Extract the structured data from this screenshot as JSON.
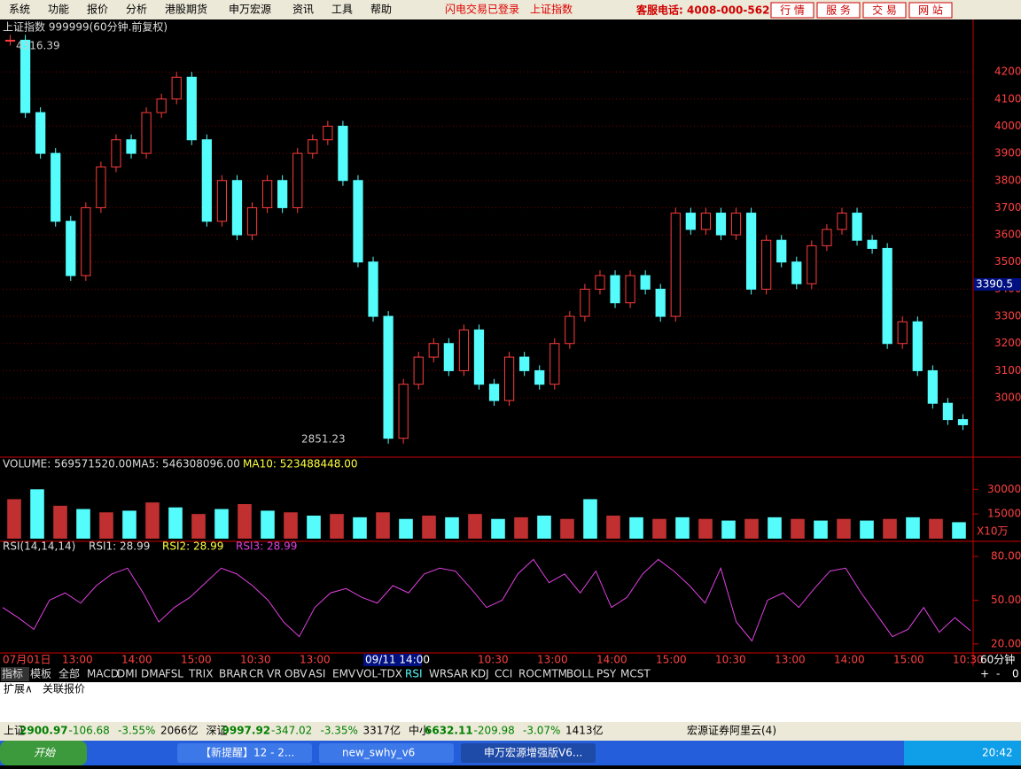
{
  "menu": [
    "系统",
    "功能",
    "报价",
    "分析",
    "港股期货",
    "申万宏源",
    "资讯",
    "工具",
    "帮助"
  ],
  "status_top": [
    "闪电交易已登录",
    "上证指数"
  ],
  "hotline": "客服电话: 4008-000-562",
  "top_buttons": [
    "行 情",
    "服 务",
    "交 易",
    "网 站"
  ],
  "price_chart": {
    "type": "candlestick",
    "title": "上证指数 999999(60分钟.前复权)",
    "values": [
      4316.39,
      4050,
      3900,
      3650,
      3450,
      3700,
      3850,
      3950,
      3900,
      4050,
      4100,
      4180,
      3950,
      3650,
      3800,
      3600,
      3700,
      3800,
      3700,
      3900,
      3950,
      4000,
      3800,
      3500,
      3300,
      2851.23,
      3050,
      3150,
      3200,
      3100,
      3250,
      3050,
      2990,
      3150,
      3100,
      3050,
      3200,
      3300,
      3400,
      3450,
      3350,
      3450,
      3400,
      3300,
      3680,
      3620,
      3680,
      3600,
      3680,
      3400,
      3580,
      3500,
      3420,
      3560,
      3620,
      3680,
      3580,
      3550,
      3200,
      3280,
      3100,
      2980,
      2920,
      2900.97
    ],
    "up_color": "#ff3c3c",
    "down_color": "#54fcfc",
    "ylim": [
      2785,
      4334
    ],
    "yticks": [
      3000,
      3100,
      3200,
      3300,
      3400,
      3500,
      3600,
      3700,
      3800,
      3900,
      4000,
      4100,
      4200
    ],
    "annotations": {
      "high": "4316.39",
      "low": "2851.23",
      "current": "3390.5"
    }
  },
  "volume_chart": {
    "type": "bar",
    "header": [
      "VOLUME: 569571520.00",
      "MA5: 546308096.00",
      "MA10: 523488448.00"
    ],
    "values": [
      24000,
      30000,
      20000,
      18000,
      16000,
      17000,
      22000,
      19000,
      15000,
      18000,
      21000,
      17000,
      16000,
      14000,
      15000,
      13000,
      16000,
      12000,
      14000,
      13000,
      15000,
      12000,
      13000,
      14000,
      12000,
      24000,
      14000,
      13000,
      12000,
      13000,
      12000,
      11000,
      12000,
      13000,
      12000,
      11000,
      12000,
      11000,
      12000,
      13000,
      12000,
      10000
    ],
    "ylim": [
      0,
      42000
    ],
    "yticks": [
      15000,
      30000
    ],
    "unit": "X10万"
  },
  "rsi_chart": {
    "type": "line",
    "header": [
      "RSI(14,14,14)",
      "RSI1: 28.99",
      "RSI2: 28.99",
      "RSI3: 28.99"
    ],
    "color": "#e040e0",
    "values": [
      45,
      38,
      30,
      50,
      55,
      48,
      60,
      68,
      72,
      55,
      35,
      45,
      52,
      62,
      72,
      68,
      60,
      50,
      35,
      25,
      45,
      55,
      58,
      52,
      48,
      60,
      55,
      68,
      72,
      70,
      58,
      45,
      50,
      68,
      78,
      62,
      68,
      55,
      70,
      45,
      52,
      68,
      78,
      70,
      60,
      48,
      72,
      35,
      22,
      50,
      55,
      45,
      58,
      70,
      72,
      55,
      40,
      25,
      30,
      45,
      28,
      38,
      28.99
    ],
    "ylim": [
      15,
      88
    ],
    "yticks": [
      {
        "value": 20,
        "label": "20.00"
      },
      {
        "value": 50,
        "label": "50.00"
      },
      {
        "value": 80,
        "label": "80.00"
      }
    ]
  },
  "time_labels": [
    "07月01日",
    "13:00",
    "14:00",
    "15:00",
    "10:30",
    "13:00",
    "10:30",
    "13:00",
    "14:00",
    "15:00",
    "10:30",
    "13:00",
    "14:00",
    "15:00",
    "10:30"
  ],
  "cursor_label": "09/11 14:00",
  "period": "60分钟",
  "zoom_buttons": [
    "+",
    "-",
    "0"
  ],
  "tabs": [
    "指标",
    "模板",
    "全部",
    "MACD",
    "DMI",
    "DMA",
    "FSL",
    "TRIX",
    "BRAR",
    "CR",
    "VR",
    "OBV",
    "ASI",
    "EMV",
    "VOL-TDX",
    "RSI",
    "WR",
    "SAR",
    "KDJ",
    "CCI",
    "ROC",
    "MTM",
    "BOLL",
    "PSY",
    "MCST"
  ],
  "sub_tabs": [
    "扩展∧",
    "关联报价"
  ],
  "status_bar": [
    [
      "上证",
      "2900.97",
      "-106.68",
      "-3.55%",
      "2066亿"
    ],
    [
      "深证",
      "9997.92",
      "-347.02",
      "-3.35%",
      "3317亿"
    ],
    [
      "中小",
      "6632.11",
      "-209.98",
      "-3.07%",
      "1413亿"
    ]
  ],
  "broker": "宏源证券阿里云(4)",
  "taskbar": {
    "start": "开始",
    "items": [
      "【新提醒】12 - 2...",
      "new_swhy_v6",
      "申万宏源增强版V6..."
    ],
    "clock": "20:42"
  }
}
